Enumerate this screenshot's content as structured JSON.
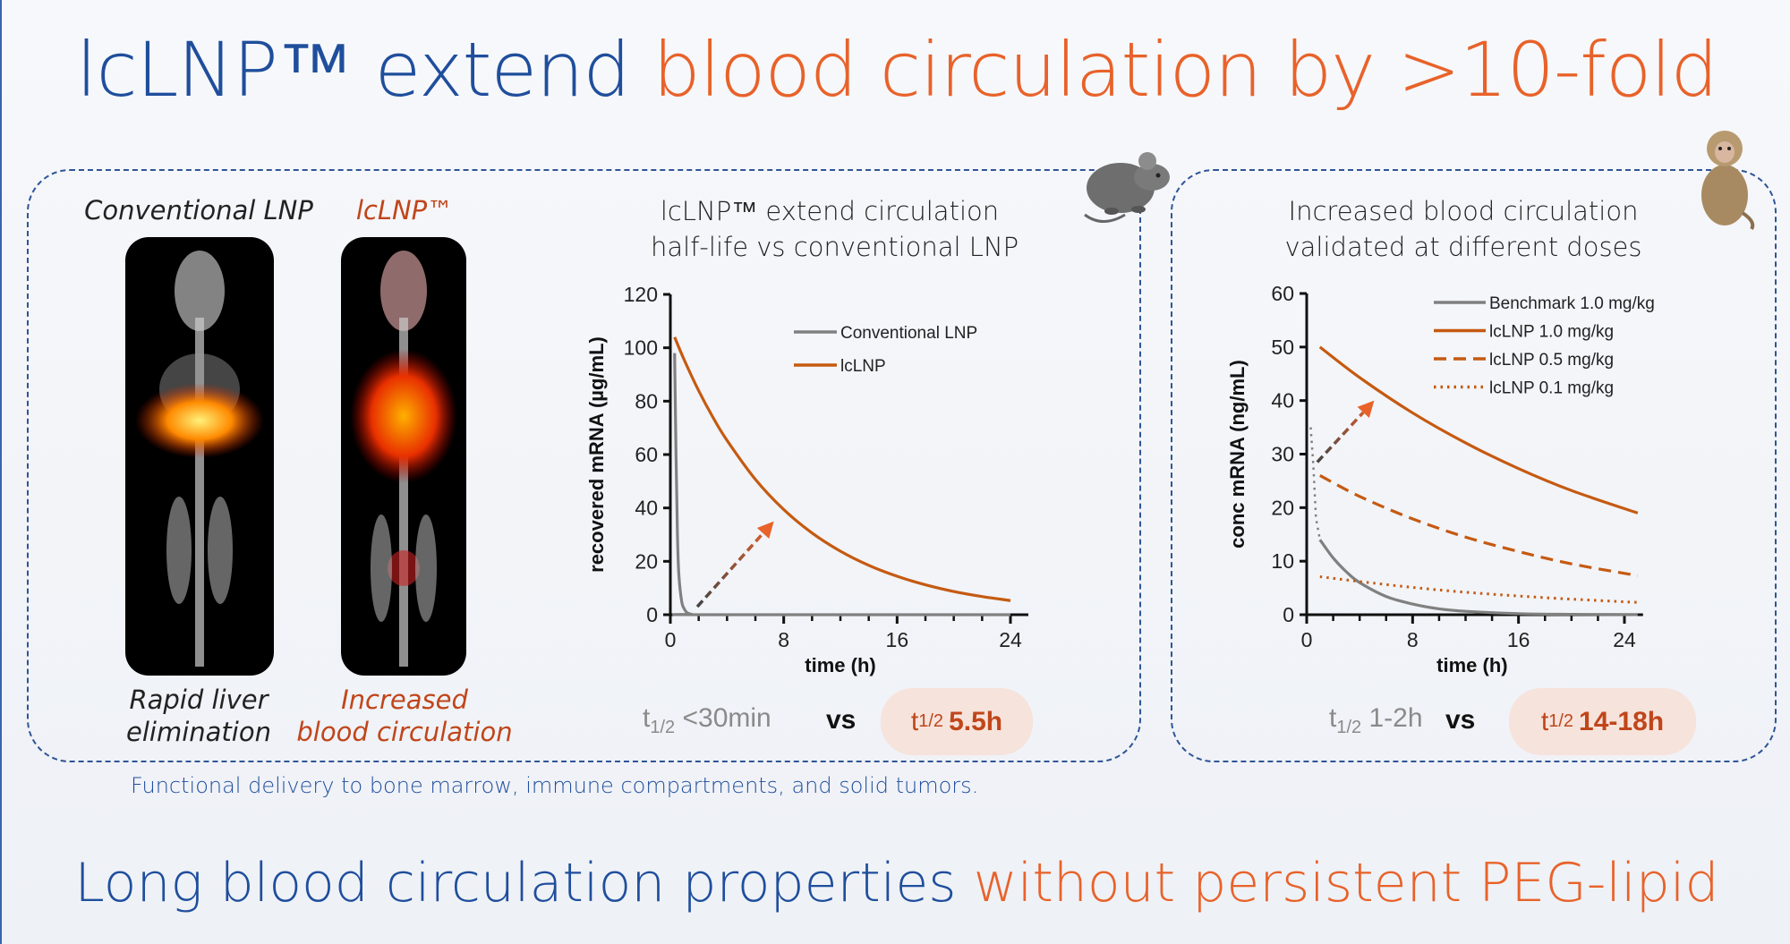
{
  "title": {
    "part1": "lcLNP™ extend ",
    "part2": "blood circulation by >10-fold"
  },
  "images": {
    "left_label": "Conventional LNP",
    "right_label": "lcLNP™",
    "left_caption": [
      "Rapid liver",
      "elimination"
    ],
    "right_caption": [
      "Increased",
      "blood circulation"
    ]
  },
  "colors": {
    "blue": "#1f4e9c",
    "orange": "#e8622a",
    "series_orange": "#c55a11",
    "series_gray": "#808080"
  },
  "chart_data": [
    {
      "type": "line",
      "title": [
        "lcLNP™ extend circulation",
        "half-life vs conventional LNP"
      ],
      "xlabel": "time (h)",
      "ylabel": "recovered mRNA (µg/mL)",
      "xlim": [
        0,
        24
      ],
      "ylim": [
        0,
        120
      ],
      "xticks": [
        0,
        8,
        16,
        24
      ],
      "yticks": [
        0,
        20,
        40,
        60,
        80,
        100,
        120
      ],
      "legend_position": "top-right",
      "series": [
        {
          "name": "Conventional LNP",
          "color": "#808080",
          "style": "solid",
          "x": [
            0.3,
            0.4,
            0.5,
            0.6,
            0.8,
            1.0,
            1.2,
            1.5,
            2,
            24
          ],
          "y": [
            98,
            60,
            30,
            15,
            5,
            2,
            0.7,
            0.2,
            0,
            0
          ]
        },
        {
          "name": "lcLNP",
          "color": "#c55a11",
          "style": "solid",
          "x": [
            0.3,
            1,
            2,
            3,
            4,
            6,
            8,
            10,
            12,
            14,
            16,
            18,
            20,
            22,
            24
          ],
          "y": [
            104,
            95.2,
            83.9,
            74.0,
            65.3,
            50.7,
            39.4,
            30.6,
            23.8,
            18.5,
            14.4,
            11.2,
            8.7,
            6.8,
            5.3
          ]
        }
      ],
      "arrow": {
        "from": [
          1.9,
          3
        ],
        "to": [
          7.3,
          35
        ]
      },
      "half_life": {
        "conventional": "<30min",
        "vs": "vs",
        "lcLNP": "5.5h",
        "symbol": "t",
        "subscript": "1/2"
      }
    },
    {
      "type": "line",
      "title": [
        "Increased blood circulation",
        "validated at different doses"
      ],
      "xlabel": "time (h)",
      "ylabel": "conc mRNA (ng/mL)",
      "xlim": [
        0,
        25
      ],
      "ylim": [
        0,
        60
      ],
      "xticks": [
        0,
        8,
        16,
        24
      ],
      "yticks": [
        0,
        10,
        20,
        30,
        40,
        50,
        60
      ],
      "legend_position": "top-right",
      "series": [
        {
          "name": "Benchmark 1.0 mg/kg",
          "color": "#808080",
          "style": "solid",
          "x": [
            1,
            2,
            3,
            4,
            6,
            8,
            10,
            12,
            16,
            20,
            25
          ],
          "y": [
            14,
            10.6,
            8.0,
            6.0,
            3.4,
            2.0,
            1.1,
            0.64,
            0.2,
            0.07,
            0.02
          ],
          "initial_phase": {
            "x": [
              0.3,
              0.5,
              0.7,
              1.0
            ],
            "y": [
              35,
              28,
              18,
              14
            ]
          }
        },
        {
          "name": "lcLNP 1.0 mg/kg",
          "color": "#c55a11",
          "style": "solid",
          "x": [
            1,
            4,
            8,
            12,
            16,
            20,
            25
          ],
          "y": [
            50,
            44.3,
            37.7,
            32.1,
            27.3,
            23.2,
            19.0
          ]
        },
        {
          "name": "lcLNP 0.5 mg/kg",
          "color": "#c55a11",
          "style": "dashed",
          "x": [
            1,
            4,
            8,
            12,
            16,
            20,
            25
          ],
          "y": [
            26,
            22.1,
            17.9,
            14.5,
            11.8,
            9.5,
            7.3
          ]
        },
        {
          "name": "lcLNP 0.1 mg/kg",
          "color": "#c55a11",
          "style": "dotted",
          "x": [
            1,
            4,
            8,
            12,
            16,
            20,
            25
          ],
          "y": [
            7.1,
            6.2,
            5.1,
            4.2,
            3.5,
            2.9,
            2.3
          ]
        }
      ],
      "arrow": {
        "from": [
          0.8,
          28.5
        ],
        "to": [
          5.1,
          40
        ]
      },
      "half_life": {
        "conventional": "1-2h",
        "vs": "vs",
        "lcLNP": "14-18h",
        "symbol": "t",
        "subscript": "1/2"
      }
    }
  ],
  "footnote": "Functional delivery to bone marrow, immune compartments, and solid tumors.",
  "bottom": {
    "part1": "Long blood circulation properties ",
    "part2": "without persistent PEG-lipid"
  },
  "icons": {
    "mouse": "mouse-icon",
    "monkey": "monkey-icon"
  }
}
